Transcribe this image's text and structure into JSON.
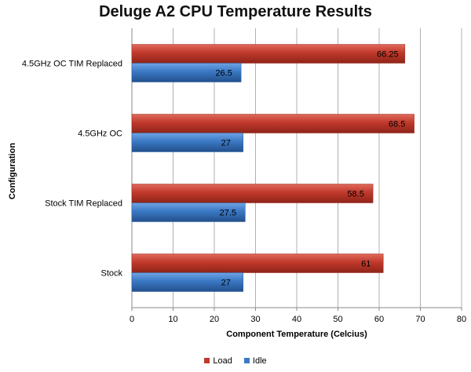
{
  "chart_data": {
    "type": "bar",
    "orientation": "horizontal",
    "title": "Deluge A2 CPU Temperature Results",
    "xlabel": "Component Temperature (Celcius)",
    "ylabel": "Configuration",
    "categories": [
      "4.5GHz OC TIM Replaced",
      "4.5GHz OC",
      "Stock TIM Replaced",
      "Stock"
    ],
    "series": [
      {
        "name": "Load",
        "color": "#c0392b",
        "values": [
          66.25,
          68.5,
          58.5,
          61
        ],
        "labels": [
          "66.25",
          "68.5",
          "58.5",
          "61"
        ]
      },
      {
        "name": "Idle",
        "color": "#3a78c4",
        "values": [
          26.5,
          27,
          27.5,
          27
        ],
        "labels": [
          "26.5",
          "27",
          "27.5",
          "27"
        ]
      }
    ],
    "xlim": [
      0,
      80
    ],
    "xticks": [
      "0",
      "10",
      "20",
      "30",
      "40",
      "50",
      "60",
      "70",
      "80"
    ],
    "grid": true,
    "legend_position": "bottom"
  }
}
